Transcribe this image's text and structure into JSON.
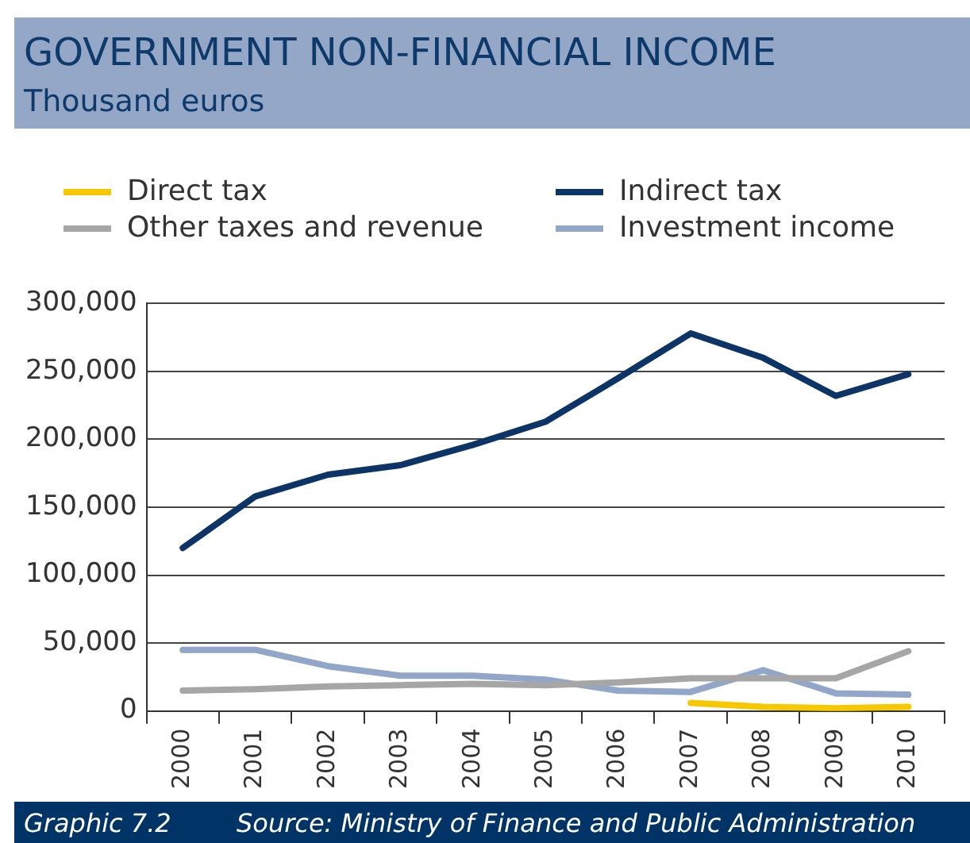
{
  "chart_data": {
    "type": "line",
    "title": "GOVERNMENT NON-FINANCIAL INCOME",
    "subtitle": "Thousand euros",
    "categories": [
      "2000",
      "2001",
      "2002",
      "2003",
      "2004",
      "2005",
      "2006",
      "2007",
      "2008",
      "2009",
      "2010"
    ],
    "series": [
      {
        "name": "Direct tax",
        "color": "#f5c800",
        "values": [
          null,
          null,
          null,
          null,
          null,
          null,
          null,
          6000,
          3000,
          2000,
          3000
        ]
      },
      {
        "name": "Indirect tax",
        "color": "#0d3466",
        "values": [
          120000,
          158000,
          174000,
          181000,
          196000,
          213000,
          245000,
          278000,
          260000,
          232000,
          248000
        ]
      },
      {
        "name": "Other taxes and revenue",
        "color": "#a6a6a6",
        "values": [
          15000,
          16000,
          18000,
          19000,
          20000,
          19000,
          21000,
          24000,
          24000,
          24000,
          44000
        ]
      },
      {
        "name": "Investment income",
        "color": "#91a6c8",
        "values": [
          45000,
          45000,
          33000,
          26000,
          26000,
          23000,
          15000,
          14000,
          30000,
          13000,
          12000
        ]
      }
    ],
    "ylim": [
      0,
      300000
    ],
    "yticks": [
      0,
      {
        "value": 50000,
        "label": "50,000"
      },
      {
        "value": 100000,
        "label": "100,000"
      },
      {
        "value": 150000,
        "label": "150,000"
      },
      {
        "value": 200000,
        "label": "200,000"
      },
      {
        "value": 250000,
        "label": "250,000"
      },
      {
        "value": 300000,
        "label": "300,000"
      }
    ],
    "grid": "y",
    "legend": "top",
    "marker": "none",
    "line_style": "solid",
    "annotations": [
      "Graphic 7.2",
      "Source: Ministry of Finance and Public Administration"
    ]
  }
}
